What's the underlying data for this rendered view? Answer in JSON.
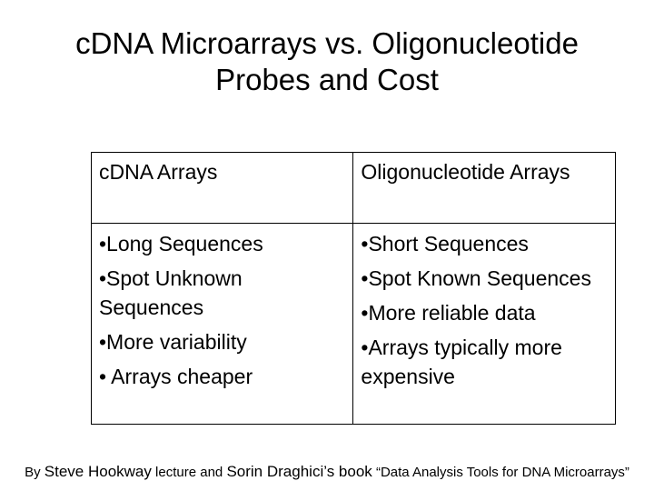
{
  "slide": {
    "title_line1": "cDNA Microarrays vs. Oligonucleotide",
    "title_line2": "Probes and Cost"
  },
  "table": {
    "headers": [
      "cDNA Arrays",
      "Oligonucleotide Arrays"
    ],
    "left_items": [
      "•Long Sequences",
      "•Spot Unknown Sequences",
      "•More variability",
      "• Arrays cheaper"
    ],
    "right_items": [
      "•Short Sequences",
      "•Spot Known Sequences",
      "•More reliable data",
      "•Arrays typically more expensive"
    ]
  },
  "credit": {
    "by": "By ",
    "author1": "Steve Hookway",
    "mid": " lecture and ",
    "author2": "Sorin Draghici’s book",
    "book": " “Data Analysis Tools for DNA Microarrays”"
  }
}
